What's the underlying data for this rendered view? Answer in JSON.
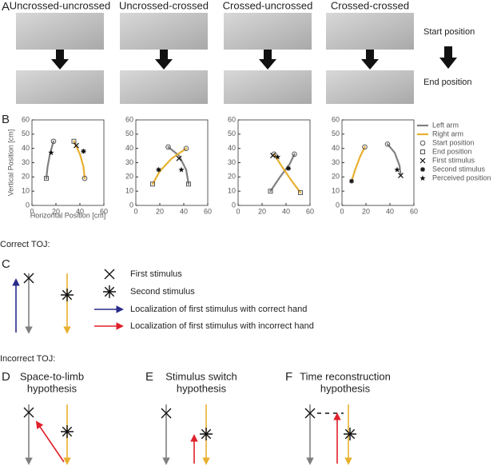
{
  "panel_a": {
    "label": "A",
    "columns": [
      "Uncrossed-uncrossed",
      "Uncrossed-crossed",
      "Crossed-uncrossed",
      "Crossed-crossed"
    ],
    "start_label": "Start position",
    "end_label": "End position"
  },
  "panel_b": {
    "label": "B",
    "xlabel": "Horizontal Position [cm]",
    "ylabel": "Vertical Position [cm]",
    "legend": [
      "Left arm",
      "Right arm",
      "Start position",
      "End position",
      "First stimulus",
      "Second stimulus",
      "Perceived position"
    ]
  },
  "chart_data": [
    {
      "type": "line",
      "xlim": [
        0,
        60
      ],
      "ylim": [
        0,
        60
      ],
      "xticks": [
        0,
        20,
        40,
        60
      ],
      "yticks": [
        0,
        10,
        20,
        30,
        40,
        50,
        60
      ],
      "series": [
        {
          "color": "#808080",
          "x": [
            18,
            15,
            13,
            12
          ],
          "values": [
            45,
            36,
            27,
            19
          ]
        },
        {
          "color": "#e8b030",
          "x": [
            35,
            40,
            43,
            44
          ],
          "values": [
            45,
            36,
            27,
            19
          ]
        }
      ],
      "start": {
        "x": [
          18,
          44
        ],
        "y": [
          45,
          19
        ]
      },
      "end": {
        "x": [
          12,
          35
        ],
        "y": [
          19,
          45
        ]
      },
      "first": {
        "x": [
          37
        ],
        "y": [
          42
        ]
      },
      "second": {
        "x": [
          43
        ],
        "y": [
          38
        ]
      },
      "perceived": {
        "x": [
          16
        ],
        "y": [
          37
        ]
      }
    },
    {
      "type": "line",
      "xlim": [
        0,
        60
      ],
      "ylim": [
        0,
        60
      ],
      "xticks": [
        0,
        20,
        40,
        60
      ],
      "yticks": [
        0,
        10,
        20,
        30,
        40,
        50,
        60
      ],
      "series": [
        {
          "color": "#808080",
          "x": [
            27,
            36,
            42,
            44
          ],
          "values": [
            41,
            35,
            25,
            15
          ]
        },
        {
          "color": "#e8b030",
          "x": [
            42,
            30,
            20,
            14
          ],
          "values": [
            40,
            33,
            24,
            15
          ]
        }
      ],
      "start": {
        "x": [
          27,
          42
        ],
        "y": [
          41,
          40
        ]
      },
      "end": {
        "x": [
          44,
          14
        ],
        "y": [
          15,
          15
        ]
      },
      "first": {
        "x": [
          36
        ],
        "y": [
          33
        ]
      },
      "second": {
        "x": [
          19
        ],
        "y": [
          25
        ]
      },
      "perceived": {
        "x": [
          38
        ],
        "y": [
          25
        ]
      }
    },
    {
      "type": "line",
      "xlim": [
        0,
        60
      ],
      "ylim": [
        0,
        60
      ],
      "xticks": [
        0,
        20,
        40,
        60
      ],
      "yticks": [
        0,
        10,
        20,
        30,
        40,
        50,
        60
      ],
      "series": [
        {
          "color": "#808080",
          "x": [
            27,
            35,
            43,
            47
          ],
          "values": [
            10,
            20,
            29,
            36
          ]
        },
        {
          "color": "#e8b030",
          "x": [
            52,
            44,
            36,
            30
          ],
          "values": [
            9,
            18,
            28,
            36
          ]
        }
      ],
      "start": {
        "x": [
          47,
          30
        ],
        "y": [
          36,
          36
        ]
      },
      "end": {
        "x": [
          27,
          52
        ],
        "y": [
          10,
          9
        ]
      },
      "first": {
        "x": [
          29
        ],
        "y": [
          35
        ]
      },
      "second": {
        "x": [
          42
        ],
        "y": [
          26
        ]
      },
      "perceived": {
        "x": [
          33
        ],
        "y": [
          34
        ]
      }
    },
    {
      "type": "line",
      "xlim": [
        0,
        60
      ],
      "ylim": [
        0,
        60
      ],
      "xticks": [
        0,
        20,
        40,
        60
      ],
      "yticks": [
        0,
        10,
        20,
        30,
        40,
        50,
        60
      ],
      "series": [
        {
          "color": "#808080",
          "x": [
            38,
            44,
            48,
            49
          ],
          "values": [
            43,
            37,
            28,
            21
          ]
        },
        {
          "color": "#e8b030",
          "x": [
            19,
            15,
            11,
            8
          ],
          "values": [
            41,
            34,
            25,
            17
          ]
        }
      ],
      "start": {
        "x": [
          38,
          19
        ],
        "y": [
          43,
          41
        ]
      },
      "end": {
        "x": [],
        "y": []
      },
      "first": {
        "x": [
          49
        ],
        "y": [
          21
        ]
      },
      "second": {
        "x": [
          8
        ],
        "y": [
          17
        ]
      },
      "perceived": {
        "x": [
          46
        ],
        "y": [
          25
        ]
      }
    }
  ],
  "correct": {
    "heading": "Correct TOJ:",
    "label": "C",
    "legend": [
      "First stimulus",
      "Second stimulus",
      "Localization of first stimulus with correct hand",
      "Localization of first stimulus with incorrect hand"
    ]
  },
  "incorrect": {
    "heading": "Incorrect TOJ:",
    "panels": [
      {
        "label": "D",
        "title": [
          "Space-to-limb",
          "hypothesis"
        ]
      },
      {
        "label": "E",
        "title": [
          "Stimulus switch",
          "hypothesis"
        ]
      },
      {
        "label": "F",
        "title": [
          "Time reconstruction",
          "hypothesis"
        ]
      }
    ]
  }
}
